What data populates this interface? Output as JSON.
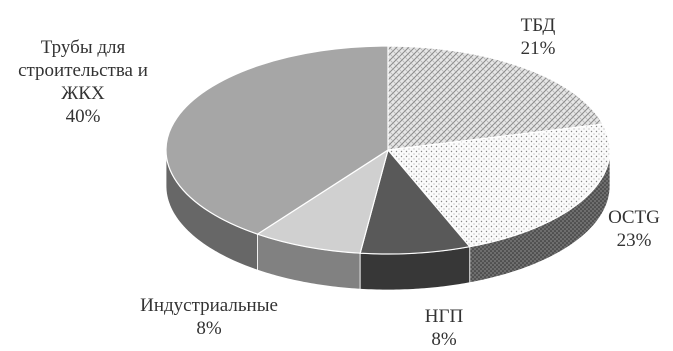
{
  "chart_data": {
    "type": "pie",
    "style": "3d",
    "slices": [
      {
        "label": "ТБД",
        "value": 21,
        "value_label": "21%",
        "color": "#d8d8d8",
        "pattern": "crosshatch"
      },
      {
        "label": "OCTG",
        "value": 23,
        "value_label": "23%",
        "color": "#f2f2f2",
        "pattern": "dots"
      },
      {
        "label": "НГП",
        "value": 8,
        "value_label": "8%",
        "color": "#595959",
        "pattern": "solid"
      },
      {
        "label": "Индустриальные",
        "value": 8,
        "value_label": "8%",
        "color": "#d0d0d0",
        "pattern": "solid"
      },
      {
        "label": "Трубы для строительства и ЖКХ",
        "label_lines": [
          "Трубы для",
          "строительства и",
          "ЖКХ"
        ],
        "value": 40,
        "value_label": "40%",
        "color": "#a6a6a6",
        "pattern": "solid"
      }
    ],
    "legend": "none"
  }
}
